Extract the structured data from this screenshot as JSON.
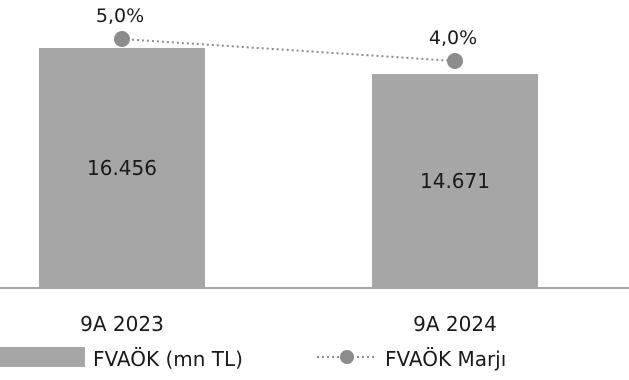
{
  "chart_data": {
    "type": "bar",
    "categories": [
      "9A 2023",
      "9A 2024"
    ],
    "series": [
      {
        "name": "FVAÖK (mn TL)",
        "type": "bar",
        "values": [
          16456,
          14671
        ],
        "labels": [
          "16.456",
          "14.671"
        ],
        "color": "#a6a6a6"
      },
      {
        "name": "FVAÖK Marjı",
        "type": "line",
        "values": [
          5.0,
          4.0
        ],
        "labels": [
          "5,0%",
          "4,0%"
        ],
        "color": "#8c8c8c",
        "line_style": "dotted",
        "marker": "circle"
      }
    ],
    "title": "",
    "xlabel": "",
    "ylabel": "",
    "legend_position": "bottom",
    "grid": false
  }
}
